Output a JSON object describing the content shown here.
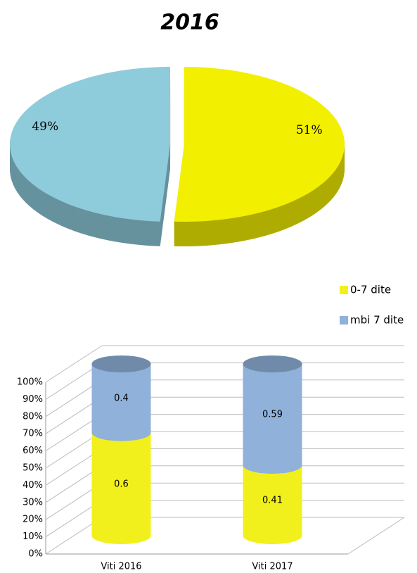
{
  "chart_data": [
    {
      "type": "pie",
      "title": "2016",
      "values": [
        51,
        49
      ],
      "value_labels": [
        "51%",
        "49%"
      ],
      "colors": [
        "#f2ef00",
        "#8ecbdb"
      ]
    },
    {
      "type": "bar",
      "stacked": true,
      "categories": [
        "Viti 2016",
        "Viti 2017"
      ],
      "series": [
        {
          "name": "0-7 dite",
          "color": "#f2f01c",
          "values": [
            0.6,
            0.41
          ]
        },
        {
          "name": "mbi 7 dite",
          "color": "#8fb1da",
          "values": [
            0.4,
            0.59
          ]
        }
      ],
      "ylim": [
        0,
        1
      ],
      "yticks": [
        {
          "value": 0,
          "label": "0%"
        },
        {
          "value": 0.1,
          "label": "10%"
        },
        {
          "value": 0.2,
          "label": "20%"
        },
        {
          "value": 0.3,
          "label": "30%"
        },
        {
          "value": 0.4,
          "label": "40%"
        },
        {
          "value": 0.5,
          "label": "50%"
        },
        {
          "value": 0.6,
          "label": "60%"
        },
        {
          "value": 0.7,
          "label": "70%"
        },
        {
          "value": 0.8,
          "label": "80%"
        },
        {
          "value": 0.9,
          "label": "90%"
        },
        {
          "value": 1,
          "label": "100%"
        }
      ],
      "grid": true,
      "legend": "top-right"
    }
  ]
}
